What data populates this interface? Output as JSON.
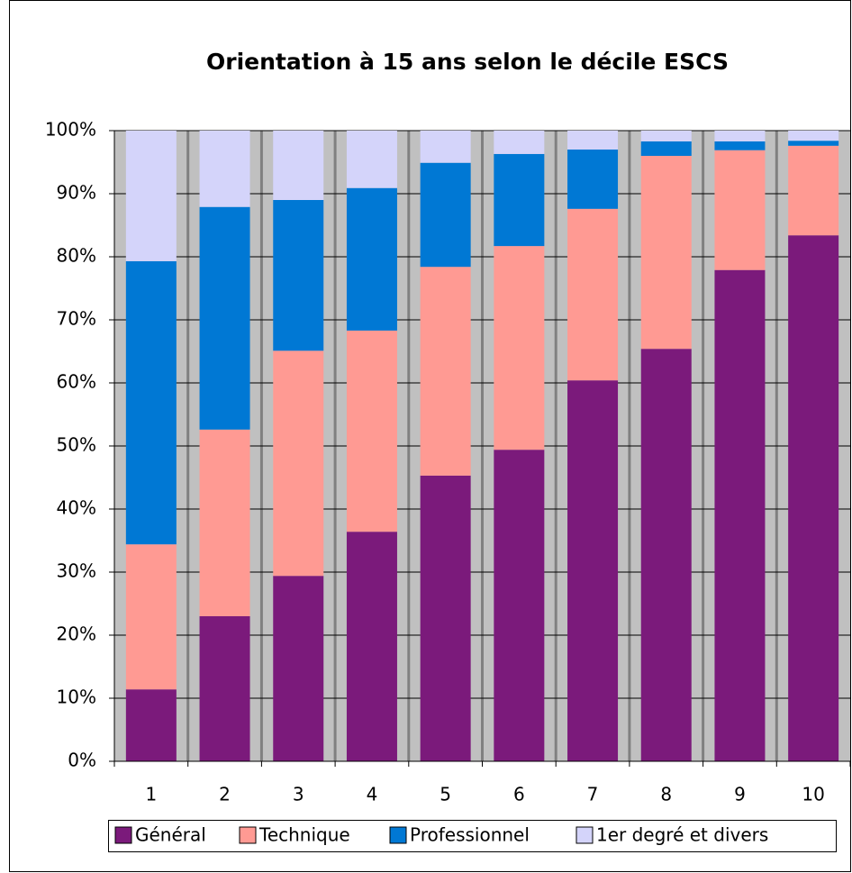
{
  "chart_data": {
    "type": "stacked_bar",
    "title": "Orientation à 15 ans selon le décile ESCS",
    "categories": [
      "1",
      "2",
      "3",
      "4",
      "5",
      "6",
      "7",
      "8",
      "9",
      "10"
    ],
    "series": [
      {
        "name": "Général",
        "color": "#7b1a7b",
        "values": [
          11.4,
          23.0,
          29.4,
          36.4,
          45.3,
          49.4,
          60.4,
          65.4,
          77.9,
          83.4
        ]
      },
      {
        "name": "Technique",
        "color": "#ff9a93",
        "values": [
          23.0,
          29.6,
          35.7,
          31.9,
          33.1,
          32.3,
          27.2,
          30.6,
          19.0,
          14.2
        ]
      },
      {
        "name": "Professionnel",
        "color": "#0078d4",
        "values": [
          44.9,
          35.3,
          23.9,
          22.6,
          16.5,
          14.6,
          9.4,
          2.3,
          1.4,
          0.8
        ]
      },
      {
        "name": "1er degré et divers",
        "color": "#d4d4fa",
        "values": [
          20.7,
          12.1,
          11.0,
          9.1,
          5.1,
          3.7,
          3.0,
          1.7,
          1.7,
          1.6
        ]
      }
    ],
    "ylim": [
      0,
      100
    ],
    "yticks": [
      {
        "value": 0,
        "label": "0%"
      },
      {
        "value": 10,
        "label": "10%"
      },
      {
        "value": 20,
        "label": "20%"
      },
      {
        "value": 30,
        "label": "30%"
      },
      {
        "value": 40,
        "label": "40%"
      },
      {
        "value": 50,
        "label": "50%"
      },
      {
        "value": 60,
        "label": "60%"
      },
      {
        "value": 70,
        "label": "70%"
      },
      {
        "value": 80,
        "label": "80%"
      },
      {
        "value": 90,
        "label": "90%"
      },
      {
        "value": 100,
        "label": "100%"
      }
    ],
    "grid": true,
    "legend": "bottom"
  }
}
